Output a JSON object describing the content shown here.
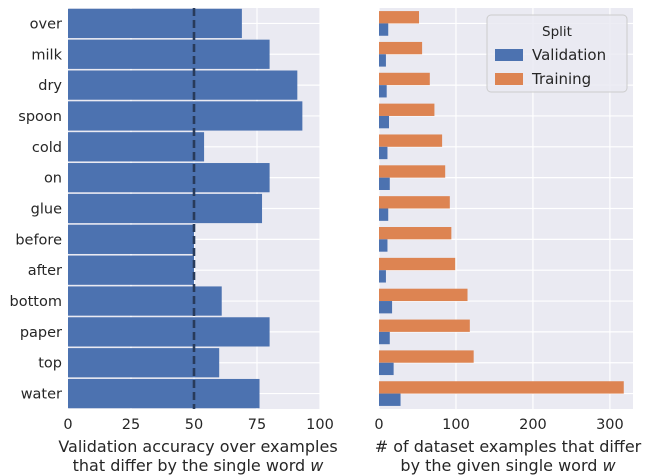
{
  "chart_data": [
    {
      "type": "bar",
      "orientation": "horizontal",
      "categories": [
        "over",
        "milk",
        "dry",
        "spoon",
        "cold",
        "on",
        "glue",
        "before",
        "after",
        "bottom",
        "paper",
        "top",
        "water"
      ],
      "values": [
        69,
        80,
        91,
        93,
        54,
        80,
        77,
        50,
        50,
        61,
        80,
        60,
        76
      ],
      "reference_line": 50,
      "xlabel_line1": "Validation accuracy over examples",
      "xlabel_line2": "that differ by the single word ",
      "xlabel_var": "w",
      "xlim": [
        0,
        100
      ],
      "xticks": [
        "0",
        "25",
        "50",
        "75",
        "100"
      ],
      "color": "#4c72b0",
      "reference_line_color": "#283b5b"
    },
    {
      "type": "bar",
      "orientation": "horizontal",
      "categories": [
        "over",
        "milk",
        "dry",
        "spoon",
        "cold",
        "on",
        "glue",
        "before",
        "after",
        "bottom",
        "paper",
        "top",
        "water"
      ],
      "series": [
        {
          "name": "Validation",
          "values": [
            12,
            9,
            10,
            13,
            11,
            14,
            12,
            11,
            9,
            17,
            14,
            19,
            28
          ],
          "color": "#4c72b0"
        },
        {
          "name": "Training",
          "values": [
            52,
            56,
            66,
            72,
            82,
            86,
            92,
            94,
            99,
            115,
            118,
            123,
            318
          ],
          "color": "#dd8452"
        }
      ],
      "legend_title": "Split",
      "legend_position": "top-right",
      "xlabel_line1": "# of dataset examples that differ",
      "xlabel_line2": "by the given single word ",
      "xlabel_var": "w",
      "xlim": [
        0,
        330
      ],
      "xticks": [
        "0",
        "100",
        "200",
        "300"
      ],
      "xtick_values": [
        0,
        100,
        200,
        300
      ]
    }
  ]
}
